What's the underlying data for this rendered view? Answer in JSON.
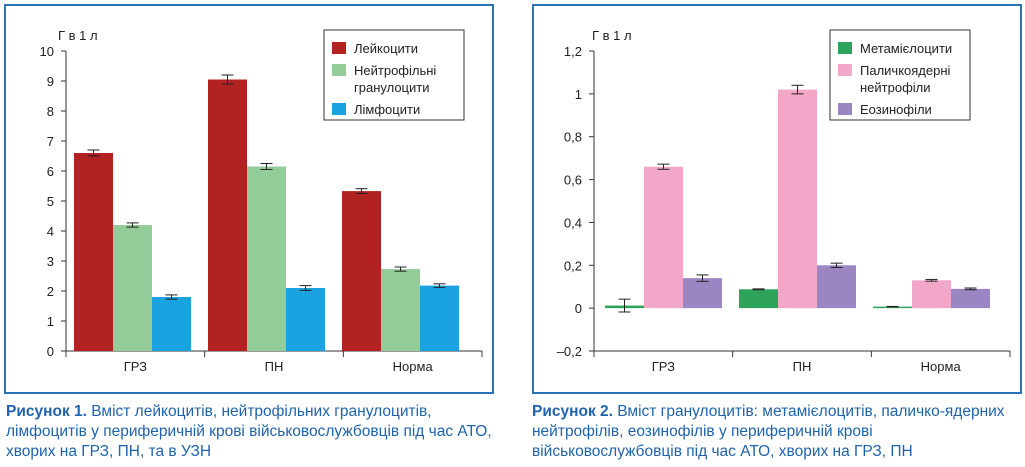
{
  "charts": [
    {
      "unit_label": "Г в 1 л",
      "caption_label": "Рисунок 1.",
      "caption_text": "Вміст лейкоцитів, нейтрофільних гранулоцитів, лімфоцитів у периферичній крові військовослужбовців під час АТО, хворих на ГРЗ, ПН, та в УЗН"
    },
    {
      "unit_label": "Г в 1 л",
      "caption_label": "Рисунок 2.",
      "caption_text": "Вміст гранулоцитів: метамієлоцитів, паличко-ядерних нейтрофілів, еозинофілів у периферичній крові військовослужбовців під час АТО, хворих на ГРЗ, ПН"
    }
  ],
  "chart_data": [
    {
      "type": "bar",
      "categories": [
        "ГРЗ",
        "ПН",
        "Норма"
      ],
      "ylabel": "Г в 1 л",
      "ylim": [
        0,
        10
      ],
      "yticks": [
        0,
        1,
        2,
        3,
        4,
        5,
        6,
        7,
        8,
        9,
        10
      ],
      "ytick_labels": [
        "0",
        "1",
        "2",
        "3",
        "4",
        "5",
        "6",
        "7",
        "8",
        "9",
        "10"
      ],
      "grid": false,
      "legend_position": "top-right",
      "series": [
        {
          "name": "Лейкоцити",
          "legend_lines": [
            "Лейкоцити"
          ],
          "color": "#b22222",
          "values": [
            6.6,
            9.05,
            5.33
          ],
          "errors": [
            0.1,
            0.15,
            0.08
          ]
        },
        {
          "name": "Нейтрофільні гранулоцити",
          "legend_lines": [
            "Нейтрофільні",
            "гранулоцити"
          ],
          "color": "#93cc98",
          "values": [
            4.2,
            6.15,
            2.73
          ],
          "errors": [
            0.07,
            0.1,
            0.07
          ]
        },
        {
          "name": "Лімфоцити",
          "legend_lines": [
            "Лімфоцити"
          ],
          "color": "#1aa3e0",
          "values": [
            1.8,
            2.1,
            2.18
          ],
          "errors": [
            0.07,
            0.08,
            0.06
          ]
        }
      ]
    },
    {
      "type": "bar",
      "categories": [
        "ГРЗ",
        "ПН",
        "Норма"
      ],
      "ylabel": "Г в 1 л",
      "ylim": [
        -0.2,
        1.2
      ],
      "yticks": [
        -0.2,
        0,
        0.2,
        0.4,
        0.6,
        0.8,
        1,
        1.2
      ],
      "ytick_labels": [
        "–0,2",
        "0",
        "0,2",
        "0,4",
        "0,6",
        "0,8",
        "1",
        "1,2"
      ],
      "grid": false,
      "legend_position": "top-right",
      "series": [
        {
          "name": "Метамієлоцити",
          "legend_lines": [
            "Метамієлоцити"
          ],
          "color": "#2ea35c",
          "values": [
            0.012,
            0.088,
            0.007
          ],
          "errors": [
            0.03,
            0.002,
            0.001
          ]
        },
        {
          "name": "Паличкоядерні нейтрофіли",
          "legend_lines": [
            "Паличкоядерні",
            "нейтрофіли"
          ],
          "color": "#f2a7c8",
          "values": [
            0.66,
            1.02,
            0.13
          ],
          "errors": [
            0.012,
            0.02,
            0.004
          ]
        },
        {
          "name": "Еозинофіли",
          "legend_lines": [
            "Еозинофіли"
          ],
          "color": "#9a86c2",
          "values": [
            0.14,
            0.2,
            0.09
          ],
          "errors": [
            0.015,
            0.01,
            0.004
          ]
        }
      ]
    }
  ]
}
